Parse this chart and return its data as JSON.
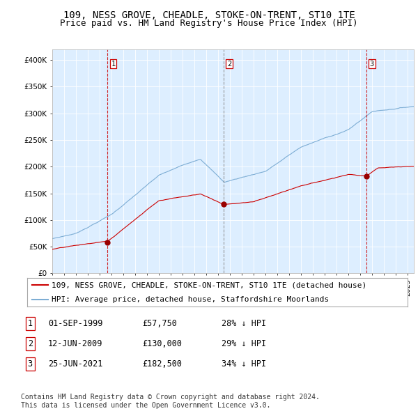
{
  "title": "109, NESS GROVE, CHEADLE, STOKE-ON-TRENT, ST10 1TE",
  "subtitle": "Price paid vs. HM Land Registry's House Price Index (HPI)",
  "ylim": [
    0,
    420000
  ],
  "yticks": [
    0,
    50000,
    100000,
    150000,
    200000,
    250000,
    300000,
    350000,
    400000
  ],
  "xlim_start": 1995.0,
  "xlim_end": 2025.5,
  "sale_color": "#cc0000",
  "hpi_color": "#7dadd4",
  "marker_color": "#990000",
  "sale_dates": [
    1999.67,
    2009.44,
    2021.48
  ],
  "sale_prices": [
    57750,
    130000,
    182500
  ],
  "sale_labels": [
    "1",
    "2",
    "3"
  ],
  "vline_styles": [
    "red_dashed",
    "gray_dashed",
    "red_dashed"
  ],
  "legend_sale": "109, NESS GROVE, CHEADLE, STOKE-ON-TRENT, ST10 1TE (detached house)",
  "legend_hpi": "HPI: Average price, detached house, Staffordshire Moorlands",
  "table_rows": [
    [
      "1",
      "01-SEP-1999",
      "£57,750",
      "28% ↓ HPI"
    ],
    [
      "2",
      "12-JUN-2009",
      "£130,000",
      "29% ↓ HPI"
    ],
    [
      "3",
      "25-JUN-2021",
      "£182,500",
      "34% ↓ HPI"
    ]
  ],
  "footnote": "Contains HM Land Registry data © Crown copyright and database right 2024.\nThis data is licensed under the Open Government Licence v3.0.",
  "background_color": "#ffffff",
  "chart_bg_color": "#ddeeff",
  "grid_color": "#ffffff",
  "title_fontsize": 10,
  "subtitle_fontsize": 9,
  "tick_fontsize": 7.5,
  "legend_fontsize": 8,
  "table_fontsize": 8.5,
  "footnote_fontsize": 7
}
